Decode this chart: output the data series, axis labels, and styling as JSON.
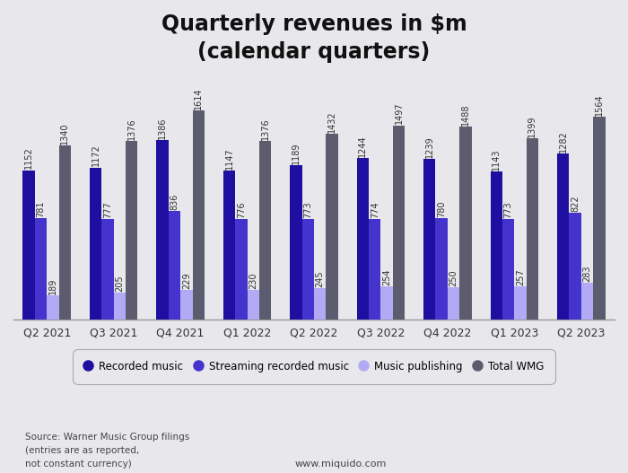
{
  "title": "Quarterly revenues in $m\n(calendar quarters)",
  "quarters": [
    "Q2 2021",
    "Q3 2021",
    "Q4 2021",
    "Q1 2022",
    "Q2 2022",
    "Q3 2022",
    "Q4 2022",
    "Q1 2023",
    "Q2 2023"
  ],
  "recorded_music": [
    1152,
    1172,
    1386,
    1147,
    1189,
    1244,
    1239,
    1143,
    1282
  ],
  "streaming_recorded_music": [
    781,
    777,
    836,
    776,
    773,
    774,
    780,
    773,
    822
  ],
  "music_publishing": [
    189,
    205,
    229,
    230,
    245,
    254,
    250,
    257,
    283
  ],
  "total_wmg": [
    1340,
    1376,
    1614,
    1376,
    1432,
    1497,
    1488,
    1399,
    1564
  ],
  "colors": {
    "recorded_music": "#1f0fa0",
    "streaming_recorded_music": "#4433cc",
    "music_publishing": "#b3aaf5",
    "total_wmg": "#5c5c6e"
  },
  "background_color": "#e8e8ec",
  "bar_width": 0.18,
  "source_text": "Source: Warner Music Group filings\n(entries are as reported,\nnot constant currency)",
  "website_text": "www.miquido.com",
  "ylim": [
    0,
    1900
  ],
  "label_fontsize": 7.0,
  "title_fontsize": 17,
  "xlabel_fontsize": 9
}
